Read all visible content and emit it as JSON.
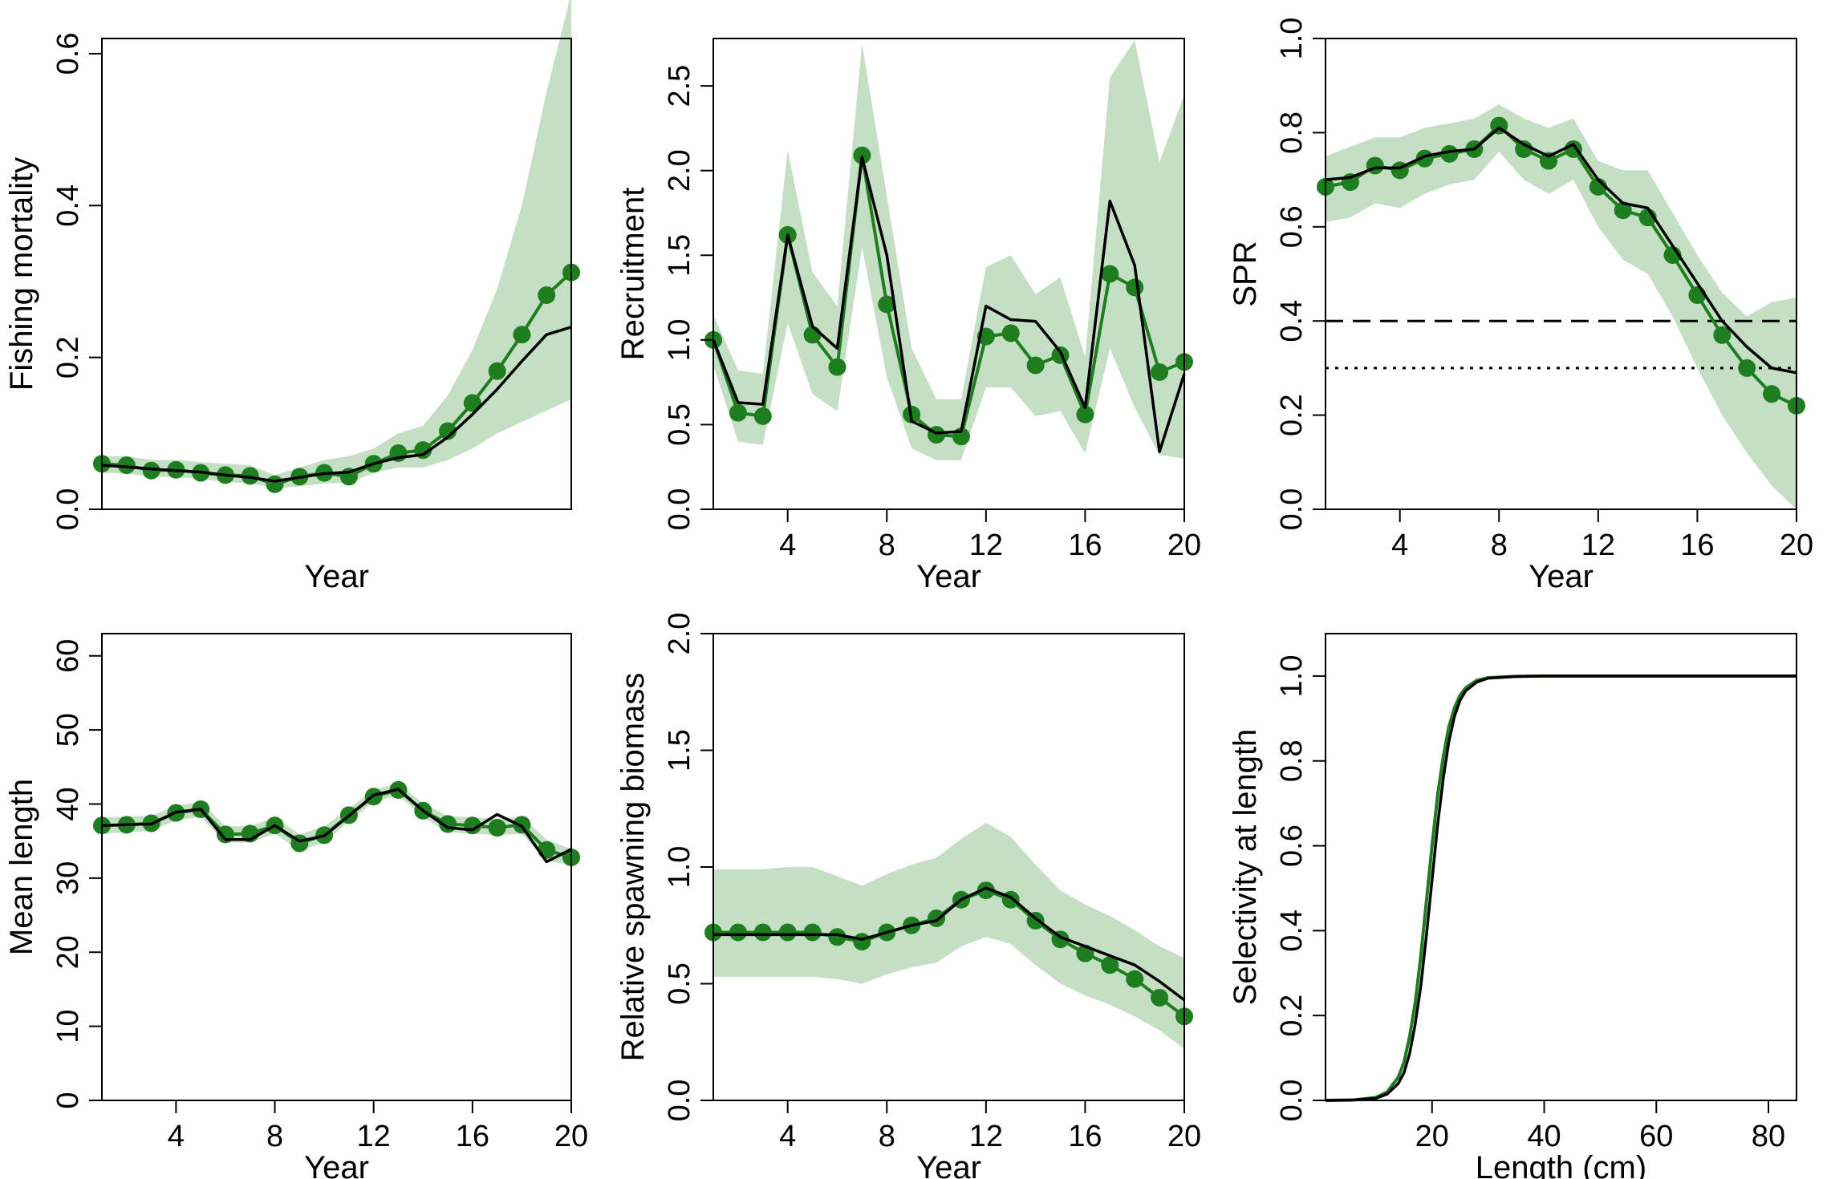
{
  "colors": {
    "estimate": "#1e7d1e",
    "band": "#c4dfc4",
    "truth": "#000000"
  },
  "chart_data": [
    {
      "type": "line",
      "panel": "fishing-mortality",
      "xlabel": "Year",
      "ylabel": "Fishing mortality",
      "xlim": [
        1,
        20
      ],
      "ylim": [
        0,
        0.62
      ],
      "xticks": [],
      "yticks": [
        0.0,
        0.2,
        0.4,
        0.6
      ],
      "ytick_labels": [
        "0.0",
        "0.2",
        "0.4",
        "0.6"
      ],
      "x": [
        1,
        2,
        3,
        4,
        5,
        6,
        7,
        8,
        9,
        10,
        11,
        12,
        13,
        14,
        15,
        16,
        17,
        18,
        19,
        20
      ],
      "series": [
        {
          "role": "band",
          "lower": [
            0.048,
            0.047,
            0.043,
            0.042,
            0.04,
            0.036,
            0.034,
            0.028,
            0.03,
            0.034,
            0.035,
            0.048,
            0.055,
            0.055,
            0.065,
            0.08,
            0.1,
            0.115,
            0.13,
            0.145
          ],
          "upper": [
            0.07,
            0.07,
            0.065,
            0.065,
            0.062,
            0.06,
            0.058,
            0.045,
            0.055,
            0.065,
            0.07,
            0.08,
            0.1,
            0.11,
            0.15,
            0.21,
            0.29,
            0.4,
            0.55,
            0.68
          ]
        },
        {
          "role": "estimate",
          "values": [
            0.06,
            0.058,
            0.051,
            0.052,
            0.048,
            0.045,
            0.044,
            0.033,
            0.043,
            0.048,
            0.043,
            0.06,
            0.074,
            0.078,
            0.103,
            0.14,
            0.182,
            0.23,
            0.282,
            0.312
          ]
        },
        {
          "role": "truth",
          "values": [
            0.058,
            0.056,
            0.053,
            0.051,
            0.049,
            0.045,
            0.042,
            0.037,
            0.042,
            0.047,
            0.049,
            0.06,
            0.068,
            0.072,
            0.095,
            0.125,
            0.158,
            0.195,
            0.23,
            0.24
          ]
        }
      ]
    },
    {
      "type": "line",
      "panel": "recruitment",
      "xlabel": "Year",
      "ylabel": "Recruitment",
      "xlim": [
        1,
        20
      ],
      "ylim": [
        0,
        2.78
      ],
      "xticks": [
        4,
        8,
        12,
        16,
        20
      ],
      "xtick_labels": [
        "4",
        "8",
        "12",
        "16",
        "20"
      ],
      "yticks": [
        0.0,
        0.5,
        1.0,
        1.5,
        2.0,
        2.5
      ],
      "ytick_labels": [
        "0.0",
        "0.5",
        "1.0",
        "1.5",
        "2.0",
        "2.5"
      ],
      "x": [
        1,
        2,
        3,
        4,
        5,
        6,
        7,
        8,
        9,
        10,
        11,
        12,
        13,
        14,
        15,
        16,
        17,
        18,
        19,
        20
      ],
      "series": [
        {
          "role": "band",
          "lower": [
            0.85,
            0.4,
            0.38,
            1.1,
            0.68,
            0.58,
            1.55,
            0.78,
            0.36,
            0.29,
            0.29,
            0.72,
            0.72,
            0.55,
            0.58,
            0.33,
            0.95,
            0.6,
            0.32,
            0.3
          ],
          "upper": [
            1.15,
            0.82,
            0.8,
            2.12,
            1.4,
            1.2,
            2.75,
            1.85,
            0.95,
            0.65,
            0.65,
            1.43,
            1.5,
            1.27,
            1.37,
            0.9,
            2.55,
            2.77,
            2.05,
            2.45
          ]
        },
        {
          "role": "estimate",
          "values": [
            1.0,
            0.57,
            0.55,
            1.62,
            1.03,
            0.84,
            2.09,
            1.21,
            0.56,
            0.44,
            0.43,
            1.02,
            1.04,
            0.85,
            0.91,
            0.56,
            1.39,
            1.31,
            0.81,
            0.87
          ]
        },
        {
          "role": "truth",
          "values": [
            1.0,
            0.63,
            0.62,
            1.62,
            1.08,
            0.95,
            2.08,
            1.5,
            0.52,
            0.45,
            0.46,
            1.2,
            1.12,
            1.11,
            0.93,
            0.6,
            1.82,
            1.44,
            0.34,
            0.8
          ]
        }
      ]
    },
    {
      "type": "line",
      "panel": "spr",
      "xlabel": "Year",
      "ylabel": "SPR",
      "xlim": [
        1,
        20
      ],
      "ylim": [
        0,
        1.0
      ],
      "xticks": [
        4,
        8,
        12,
        16,
        20
      ],
      "xtick_labels": [
        "4",
        "8",
        "12",
        "16",
        "20"
      ],
      "yticks": [
        0.0,
        0.2,
        0.4,
        0.6,
        0.8,
        1.0
      ],
      "ytick_labels": [
        "0.0",
        "0.2",
        "0.4",
        "0.6",
        "0.8",
        "1.0"
      ],
      "reference_lines": [
        {
          "y": 0.4,
          "style": "dashed"
        },
        {
          "y": 0.3,
          "style": "dotted"
        }
      ],
      "x": [
        1,
        2,
        3,
        4,
        5,
        6,
        7,
        8,
        9,
        10,
        11,
        12,
        13,
        14,
        15,
        16,
        17,
        18,
        19,
        20
      ],
      "series": [
        {
          "role": "band",
          "lower": [
            0.61,
            0.62,
            0.65,
            0.64,
            0.67,
            0.69,
            0.7,
            0.76,
            0.7,
            0.67,
            0.7,
            0.6,
            0.53,
            0.5,
            0.41,
            0.3,
            0.2,
            0.12,
            0.05,
            0.0
          ],
          "upper": [
            0.75,
            0.77,
            0.79,
            0.79,
            0.81,
            0.82,
            0.83,
            0.86,
            0.83,
            0.81,
            0.83,
            0.74,
            0.72,
            0.72,
            0.63,
            0.54,
            0.46,
            0.41,
            0.44,
            0.45
          ]
        },
        {
          "role": "estimate",
          "values": [
            0.685,
            0.695,
            0.73,
            0.72,
            0.745,
            0.755,
            0.765,
            0.815,
            0.765,
            0.74,
            0.765,
            0.685,
            0.635,
            0.62,
            0.54,
            0.455,
            0.37,
            0.3,
            0.245,
            0.22
          ]
        },
        {
          "role": "truth",
          "values": [
            0.7,
            0.705,
            0.725,
            0.725,
            0.75,
            0.76,
            0.765,
            0.81,
            0.775,
            0.75,
            0.775,
            0.7,
            0.65,
            0.64,
            0.56,
            0.48,
            0.4,
            0.345,
            0.3,
            0.29
          ]
        }
      ]
    },
    {
      "type": "line",
      "panel": "mean-length",
      "xlabel": "Year",
      "ylabel": "Mean length",
      "xlim": [
        1,
        20
      ],
      "ylim": [
        0,
        63
      ],
      "xticks": [
        4,
        8,
        12,
        16,
        20
      ],
      "xtick_labels": [
        "4",
        "8",
        "12",
        "16",
        "20"
      ],
      "yticks": [
        0,
        10,
        20,
        30,
        40,
        50,
        60
      ],
      "ytick_labels": [
        "0",
        "10",
        "20",
        "30",
        "40",
        "50",
        "60"
      ],
      "x": [
        1,
        2,
        3,
        4,
        5,
        6,
        7,
        8,
        9,
        10,
        11,
        12,
        13,
        14,
        15,
        16,
        17,
        18,
        19,
        20
      ],
      "series": [
        {
          "role": "band",
          "lower": [
            36.0,
            36.2,
            36.4,
            37.8,
            38.3,
            34.8,
            34.8,
            36.0,
            33.7,
            34.8,
            37.6,
            40.3,
            41.2,
            38.2,
            36.2,
            36.0,
            35.8,
            36.0,
            32.3,
            31.8
          ],
          "upper": [
            38.2,
            38.3,
            38.4,
            39.8,
            40.3,
            37.0,
            37.0,
            38.2,
            35.9,
            37.0,
            39.4,
            41.9,
            42.8,
            40.1,
            38.4,
            38.2,
            38.0,
            38.3,
            35.2,
            33.9
          ]
        },
        {
          "role": "estimate",
          "values": [
            37.1,
            37.2,
            37.4,
            38.8,
            39.3,
            35.9,
            36.0,
            37.1,
            34.7,
            35.8,
            38.5,
            41.0,
            41.9,
            39.1,
            37.3,
            37.1,
            36.8,
            37.2,
            33.8,
            32.8
          ]
        },
        {
          "role": "truth",
          "values": [
            37.1,
            37.2,
            37.3,
            38.9,
            39.3,
            35.2,
            35.2,
            37.1,
            35.0,
            35.7,
            38.4,
            41.2,
            42.0,
            39.1,
            36.8,
            36.5,
            38.6,
            37.0,
            32.2,
            33.9
          ]
        }
      ]
    },
    {
      "type": "line",
      "panel": "relative-spawning-biomass",
      "xlabel": "Year",
      "ylabel": "Relative spawning biomass",
      "xlim": [
        1,
        20
      ],
      "ylim": [
        0,
        2.0
      ],
      "xticks": [
        4,
        8,
        12,
        16,
        20
      ],
      "xtick_labels": [
        "4",
        "8",
        "12",
        "16",
        "20"
      ],
      "yticks": [
        0.0,
        0.5,
        1.0,
        1.5,
        2.0
      ],
      "ytick_labels": [
        "0.0",
        "0.5",
        "1.0",
        "1.5",
        "2.0"
      ],
      "x": [
        1,
        2,
        3,
        4,
        5,
        6,
        7,
        8,
        9,
        10,
        11,
        12,
        13,
        14,
        15,
        16,
        17,
        18,
        19,
        20
      ],
      "series": [
        {
          "role": "band",
          "lower": [
            0.53,
            0.53,
            0.53,
            0.53,
            0.53,
            0.52,
            0.5,
            0.54,
            0.57,
            0.59,
            0.66,
            0.7,
            0.67,
            0.58,
            0.5,
            0.45,
            0.41,
            0.36,
            0.3,
            0.22
          ],
          "upper": [
            0.99,
            0.99,
            0.99,
            1.0,
            1.0,
            0.96,
            0.92,
            0.97,
            1.01,
            1.04,
            1.12,
            1.19,
            1.13,
            1.01,
            0.9,
            0.84,
            0.79,
            0.73,
            0.66,
            0.61
          ]
        },
        {
          "role": "estimate",
          "values": [
            0.72,
            0.72,
            0.72,
            0.72,
            0.72,
            0.7,
            0.68,
            0.72,
            0.75,
            0.78,
            0.86,
            0.9,
            0.86,
            0.77,
            0.69,
            0.63,
            0.58,
            0.52,
            0.44,
            0.36
          ]
        },
        {
          "role": "truth",
          "values": [
            0.71,
            0.71,
            0.71,
            0.71,
            0.71,
            0.71,
            0.69,
            0.72,
            0.75,
            0.77,
            0.86,
            0.91,
            0.87,
            0.78,
            0.7,
            0.66,
            0.62,
            0.58,
            0.51,
            0.43
          ]
        }
      ]
    },
    {
      "type": "line",
      "panel": "selectivity",
      "xlabel": "Length (cm)",
      "ylabel": "Selectivity at length",
      "xlim": [
        1,
        85
      ],
      "ylim": [
        0,
        1.1
      ],
      "xticks": [
        20,
        40,
        60,
        80
      ],
      "xtick_labels": [
        "20",
        "40",
        "60",
        "80"
      ],
      "yticks": [
        0.0,
        0.2,
        0.4,
        0.6,
        0.8,
        1.0
      ],
      "ytick_labels": [
        "0.0",
        "0.2",
        "0.4",
        "0.6",
        "0.8",
        "1.0"
      ],
      "x": [
        1,
        6,
        10,
        12,
        14,
        15,
        16,
        17,
        18,
        19,
        20,
        21,
        22,
        23,
        24,
        25,
        26,
        28,
        30,
        35,
        40,
        50,
        60,
        70,
        80,
        85
      ],
      "series": [
        {
          "role": "estimate",
          "values": [
            0.0,
            0.001,
            0.007,
            0.02,
            0.055,
            0.09,
            0.15,
            0.23,
            0.34,
            0.47,
            0.6,
            0.72,
            0.81,
            0.88,
            0.925,
            0.955,
            0.972,
            0.99,
            0.996,
            0.999,
            1.0,
            1.0,
            1.0,
            1.0,
            1.0,
            1.0
          ]
        },
        {
          "role": "truth",
          "values": [
            0.0,
            0.001,
            0.005,
            0.015,
            0.04,
            0.065,
            0.11,
            0.18,
            0.27,
            0.39,
            0.52,
            0.65,
            0.76,
            0.845,
            0.905,
            0.943,
            0.965,
            0.986,
            0.995,
            0.999,
            1.0,
            1.0,
            1.0,
            1.0,
            1.0,
            1.0
          ]
        }
      ]
    }
  ]
}
